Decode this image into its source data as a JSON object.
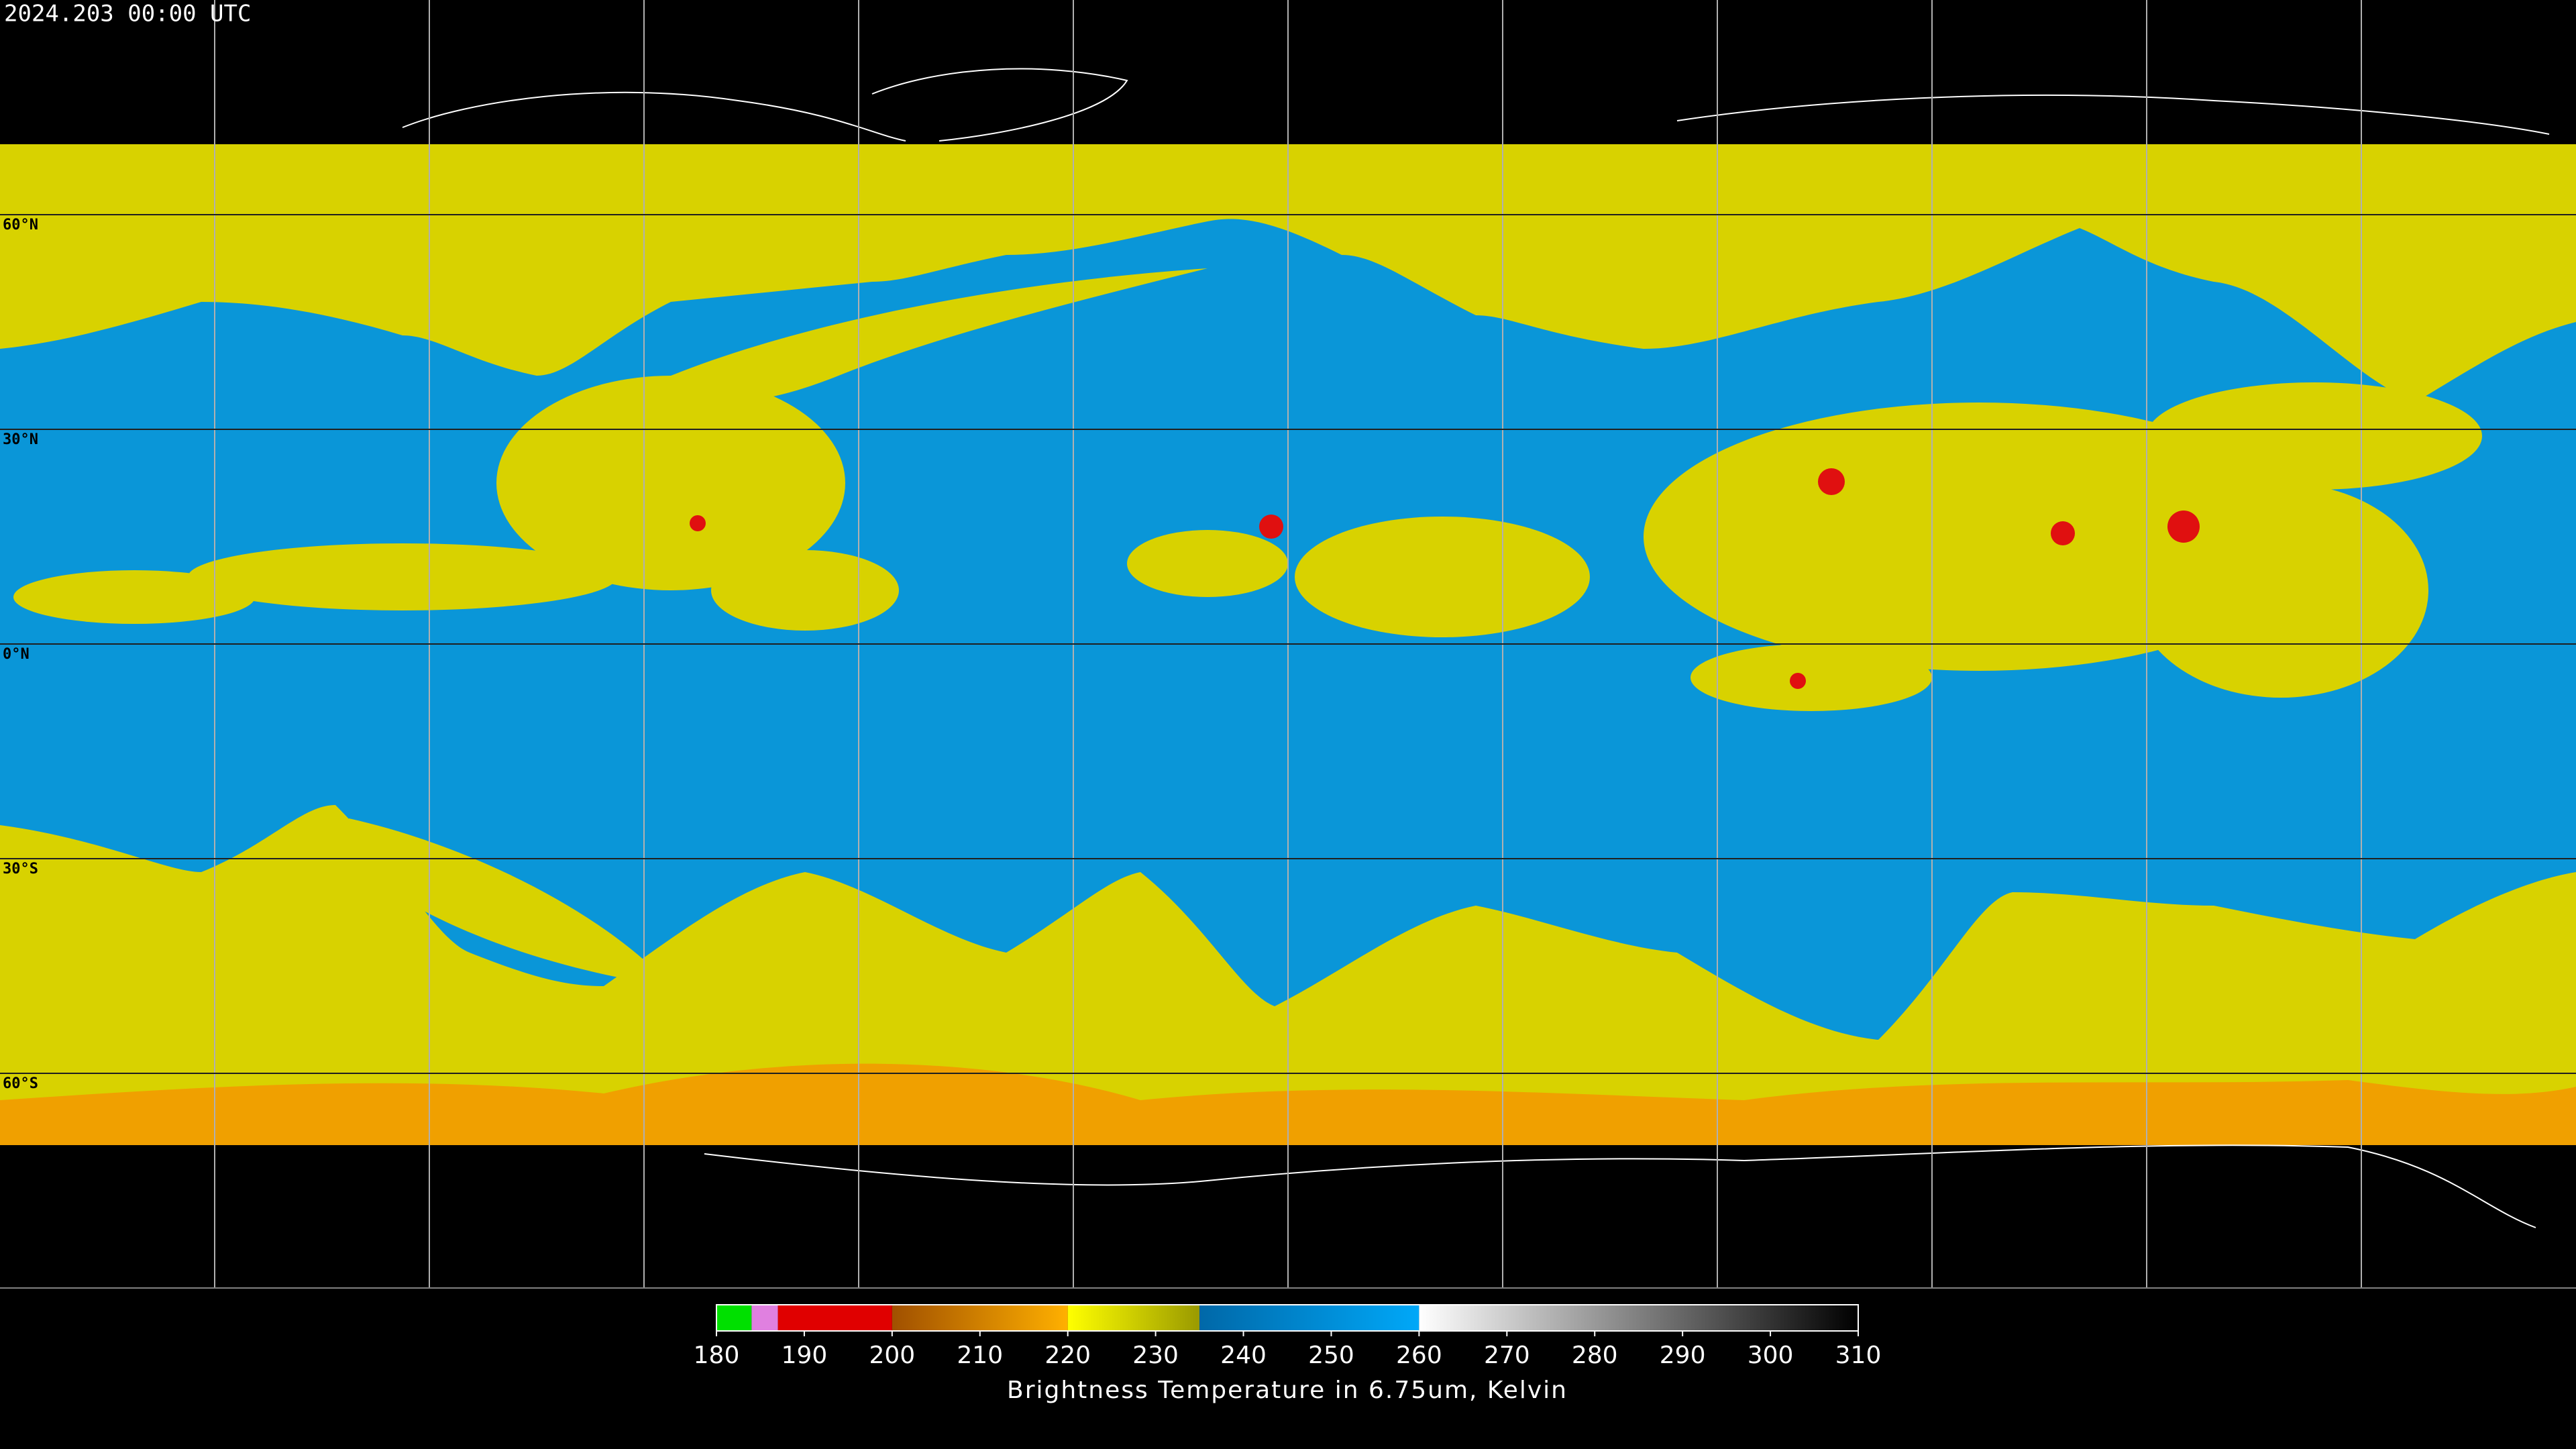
{
  "title": "2024.203 00:00 UTC",
  "map": {
    "lat_lines": [
      {
        "value": 60,
        "label": "60°N"
      },
      {
        "value": 30,
        "label": "30°N"
      },
      {
        "value": 0,
        "label": "0°N"
      },
      {
        "value": -30,
        "label": "30°S"
      },
      {
        "value": -60,
        "label": "60°S"
      }
    ]
  },
  "colorbar": {
    "caption": "Brightness Temperature in 6.75um, Kelvin",
    "lim": [
      180,
      310
    ],
    "ticks": [
      180,
      190,
      200,
      210,
      220,
      230,
      240,
      250,
      260,
      270,
      280,
      290,
      300,
      310
    ],
    "segments": [
      {
        "from": 180,
        "to": 184,
        "color_from": "#00e000",
        "color_to": "#00e000"
      },
      {
        "from": 184,
        "to": 187,
        "color_from": "#e080e0",
        "color_to": "#e080e0"
      },
      {
        "from": 187,
        "to": 200,
        "color_from": "#e00000",
        "color_to": "#e00000"
      },
      {
        "from": 200,
        "to": 220,
        "color_from": "#a05000",
        "color_to": "#ffb000"
      },
      {
        "from": 220,
        "to": 235,
        "color_from": "#ffff00",
        "color_to": "#9a9a00"
      },
      {
        "from": 235,
        "to": 260,
        "color_from": "#0068a8",
        "color_to": "#00a8f8"
      },
      {
        "from": 260,
        "to": 310,
        "color_from": "#ffffff",
        "color_to": "#000000"
      }
    ]
  }
}
